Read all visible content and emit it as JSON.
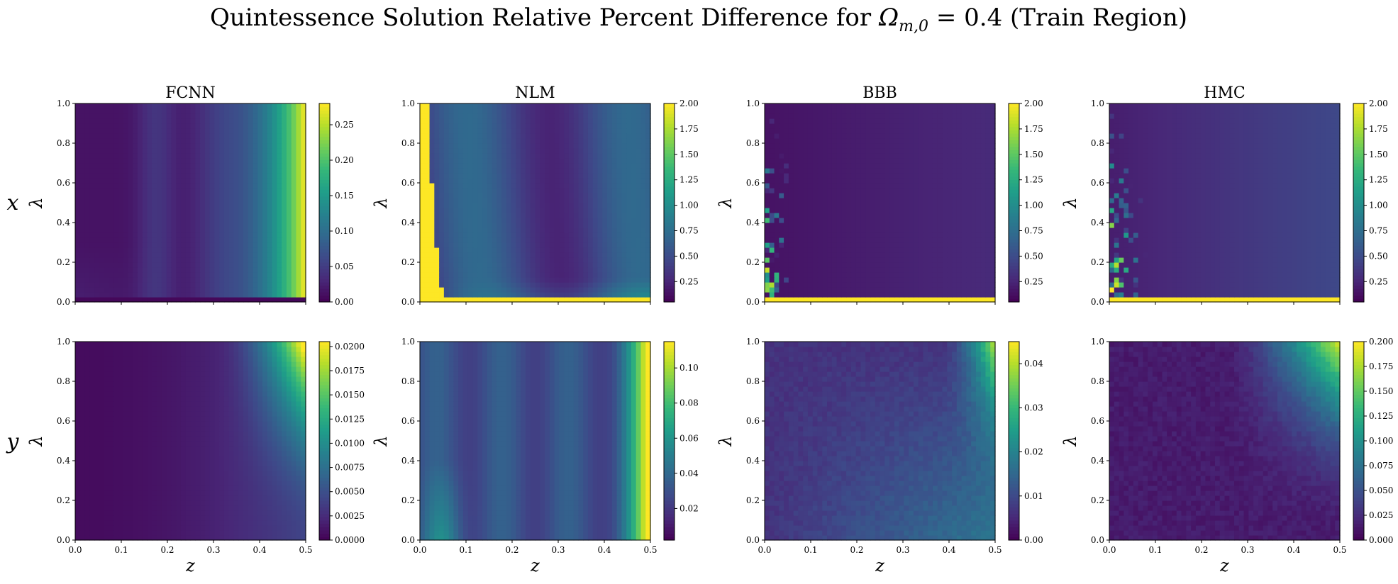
{
  "figure": {
    "title_prefix": "Quintessence Solution Relative Percent Difference for ",
    "title_math_symbol": "Ω",
    "title_math_subscript": "m,0",
    "title_suffix": " = 0.4 (Train Region)"
  },
  "colormap": {
    "name": "viridis",
    "stops": [
      "#440154",
      "#482878",
      "#3e4989",
      "#31688e",
      "#26828e",
      "#1f9e89",
      "#35b779",
      "#6ece58",
      "#b5de2b",
      "#fde725"
    ]
  },
  "chart_data": [
    {
      "type": "heatmap",
      "row": "x",
      "title": "FCNN",
      "xlabel": "z",
      "ylabel": "λ",
      "xlim": [
        0,
        0.5
      ],
      "ylim": [
        0,
        1
      ],
      "xticks": [],
      "yticks": [
        "0.0",
        "0.2",
        "0.4",
        "0.6",
        "0.8",
        "1.0"
      ],
      "clim": [
        0,
        0.28
      ],
      "cbar_ticks": [
        {
          "v": 0,
          "label": "0.00"
        },
        {
          "v": 0.05,
          "label": "0.05"
        },
        {
          "v": 0.1,
          "label": "0.10"
        },
        {
          "v": 0.15,
          "label": "0.15"
        },
        {
          "v": 0.2,
          "label": "0.20"
        },
        {
          "v": 0.25,
          "label": "0.25"
        }
      ]
    },
    {
      "type": "heatmap",
      "row": "x",
      "title": "NLM",
      "xlabel": "z",
      "ylabel": "λ",
      "xlim": [
        0,
        0.5
      ],
      "ylim": [
        0,
        1
      ],
      "xticks": [],
      "yticks": [
        "0.0",
        "0.2",
        "0.4",
        "0.6",
        "0.8",
        "1.0"
      ],
      "clim": [
        0.05,
        2.0
      ],
      "cbar_ticks": [
        {
          "v": 0.25,
          "label": "0.25"
        },
        {
          "v": 0.5,
          "label": "0.50"
        },
        {
          "v": 0.75,
          "label": "0.75"
        },
        {
          "v": 1.0,
          "label": "1.00"
        },
        {
          "v": 1.25,
          "label": "1.25"
        },
        {
          "v": 1.5,
          "label": "1.50"
        },
        {
          "v": 1.75,
          "label": "1.75"
        },
        {
          "v": 2.0,
          "label": "2.00"
        }
      ]
    },
    {
      "type": "heatmap",
      "row": "x",
      "title": "BBB",
      "xlabel": "z",
      "ylabel": "λ",
      "xlim": [
        0,
        0.5
      ],
      "ylim": [
        0,
        1
      ],
      "xticks": [],
      "yticks": [
        "0.0",
        "0.2",
        "0.4",
        "0.6",
        "0.8",
        "1.0"
      ],
      "clim": [
        0.05,
        2.0
      ],
      "cbar_ticks": [
        {
          "v": 0.25,
          "label": "0.25"
        },
        {
          "v": 0.5,
          "label": "0.50"
        },
        {
          "v": 0.75,
          "label": "0.75"
        },
        {
          "v": 1.0,
          "label": "1.00"
        },
        {
          "v": 1.25,
          "label": "1.25"
        },
        {
          "v": 1.5,
          "label": "1.50"
        },
        {
          "v": 1.75,
          "label": "1.75"
        },
        {
          "v": 2.0,
          "label": "2.00"
        }
      ]
    },
    {
      "type": "heatmap",
      "row": "x",
      "title": "HMC",
      "xlabel": "z",
      "ylabel": "λ",
      "xlim": [
        0,
        0.5
      ],
      "ylim": [
        0,
        1
      ],
      "xticks": [],
      "yticks": [
        "0.0",
        "0.2",
        "0.4",
        "0.6",
        "0.8",
        "1.0"
      ],
      "clim": [
        0.05,
        2.0
      ],
      "cbar_ticks": [
        {
          "v": 0.25,
          "label": "0.25"
        },
        {
          "v": 0.5,
          "label": "0.50"
        },
        {
          "v": 0.75,
          "label": "0.75"
        },
        {
          "v": 1.0,
          "label": "1.00"
        },
        {
          "v": 1.25,
          "label": "1.25"
        },
        {
          "v": 1.5,
          "label": "1.50"
        },
        {
          "v": 1.75,
          "label": "1.75"
        },
        {
          "v": 2.0,
          "label": "2.00"
        }
      ]
    },
    {
      "type": "heatmap",
      "row": "y",
      "title": "",
      "xlabel": "z",
      "ylabel": "λ",
      "xlim": [
        0,
        0.5
      ],
      "ylim": [
        0,
        1
      ],
      "xticks": [
        "0.0",
        "0.1",
        "0.2",
        "0.3",
        "0.4",
        "0.5"
      ],
      "yticks": [
        "0.0",
        "0.2",
        "0.4",
        "0.6",
        "0.8",
        "1.0"
      ],
      "clim": [
        0,
        0.0205
      ],
      "cbar_ticks": [
        {
          "v": 0,
          "label": "0.0000"
        },
        {
          "v": 0.0025,
          "label": "0.0025"
        },
        {
          "v": 0.005,
          "label": "0.0050"
        },
        {
          "v": 0.0075,
          "label": "0.0075"
        },
        {
          "v": 0.01,
          "label": "0.0100"
        },
        {
          "v": 0.0125,
          "label": "0.0125"
        },
        {
          "v": 0.015,
          "label": "0.0150"
        },
        {
          "v": 0.0175,
          "label": "0.0175"
        },
        {
          "v": 0.02,
          "label": "0.0200"
        }
      ]
    },
    {
      "type": "heatmap",
      "row": "y",
      "title": "",
      "xlabel": "z",
      "ylabel": "λ",
      "xlim": [
        0,
        0.5
      ],
      "ylim": [
        0,
        1
      ],
      "xticks": [
        "0.0",
        "0.1",
        "0.2",
        "0.3",
        "0.4",
        "0.5"
      ],
      "yticks": [
        "0.0",
        "0.2",
        "0.4",
        "0.6",
        "0.8",
        "1.0"
      ],
      "clim": [
        0.002,
        0.115
      ],
      "cbar_ticks": [
        {
          "v": 0.02,
          "label": "0.02"
        },
        {
          "v": 0.04,
          "label": "0.04"
        },
        {
          "v": 0.06,
          "label": "0.06"
        },
        {
          "v": 0.08,
          "label": "0.08"
        },
        {
          "v": 0.1,
          "label": "0.10"
        }
      ]
    },
    {
      "type": "heatmap",
      "row": "y",
      "title": "",
      "xlabel": "z",
      "ylabel": "λ",
      "xlim": [
        0,
        0.5
      ],
      "ylim": [
        0,
        1
      ],
      "xticks": [
        "0.0",
        "0.1",
        "0.2",
        "0.3",
        "0.4",
        "0.5"
      ],
      "yticks": [
        "0.0",
        "0.2",
        "0.4",
        "0.6",
        "0.8",
        "1.0"
      ],
      "clim": [
        0,
        0.045
      ],
      "cbar_ticks": [
        {
          "v": 0,
          "label": "0.00"
        },
        {
          "v": 0.01,
          "label": "0.01"
        },
        {
          "v": 0.02,
          "label": "0.02"
        },
        {
          "v": 0.03,
          "label": "0.03"
        },
        {
          "v": 0.04,
          "label": "0.04"
        }
      ]
    },
    {
      "type": "heatmap",
      "row": "y",
      "title": "",
      "xlabel": "z",
      "ylabel": "λ",
      "xlim": [
        0,
        0.5
      ],
      "ylim": [
        0,
        1
      ],
      "xticks": [
        "0.0",
        "0.1",
        "0.2",
        "0.3",
        "0.4",
        "0.5"
      ],
      "yticks": [
        "0.0",
        "0.2",
        "0.4",
        "0.6",
        "0.8",
        "1.0"
      ],
      "clim": [
        0,
        0.2
      ],
      "cbar_ticks": [
        {
          "v": 0,
          "label": "0.000"
        },
        {
          "v": 0.025,
          "label": "0.025"
        },
        {
          "v": 0.05,
          "label": "0.050"
        },
        {
          "v": 0.075,
          "label": "0.075"
        },
        {
          "v": 0.1,
          "label": "0.100"
        },
        {
          "v": 0.125,
          "label": "0.125"
        },
        {
          "v": 0.15,
          "label": "0.150"
        },
        {
          "v": 0.175,
          "label": "0.175"
        },
        {
          "v": 0.2,
          "label": "0.200"
        }
      ]
    }
  ],
  "row_labels": [
    "x",
    "y"
  ]
}
